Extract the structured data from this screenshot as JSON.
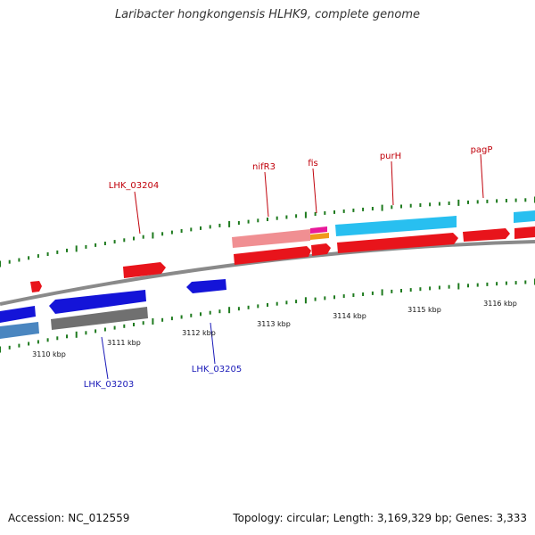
{
  "title": "Laribacter hongkongensis HLHK9, complete genome",
  "footer": {
    "accession": "Accession: NC_012559",
    "summary": "Topology: circular; Length: 3,169,329 bp; Genes: 3,333"
  },
  "ticks": [
    "3110 kbp",
    "3111 kbp",
    "3112 kbp",
    "3113 kbp",
    "3114 kbp",
    "3115 kbp",
    "3116 kbp"
  ],
  "labels": {
    "LHK_03204": "LHK_03204",
    "nifR3": "nifR3",
    "fis": "fis",
    "purH": "purH",
    "pagP": "pagP",
    "LHK_03203": "LHK_03203",
    "LHK_03205": "LHK_03205"
  },
  "colors": {
    "forward_cds": "#e8141b",
    "reverse_cds": "#1414d8",
    "forward_label": "#c0000a",
    "reverse_label": "#1a1ab8",
    "backbone": "#8a8a8a",
    "tick": "#1e7a1e",
    "light_blue": "#28bff0",
    "pink": "#f08f92",
    "magenta": "#e81a9a",
    "orange": "#f09a1a",
    "steel_blue": "#4a86c0",
    "gray_feature": "#707070"
  }
}
